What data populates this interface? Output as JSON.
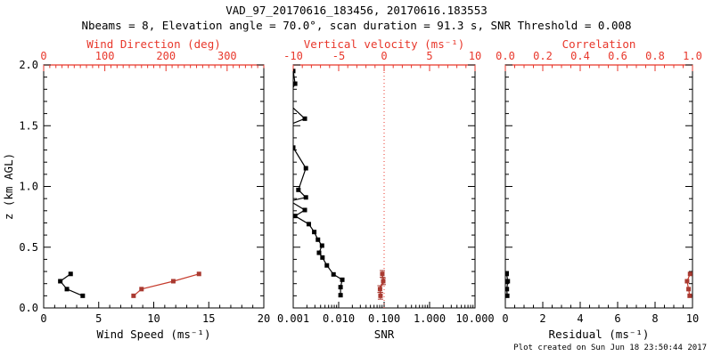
{
  "title": "VAD_97_20170616_183456, 20170616.183553",
  "subtitle": "Nbeams = 8, Elevation angle = 70.0°, scan duration = 91.3 s, SNR Threshold = 0.008",
  "footer": "Plot created on Sun Jun 18 23:50:44 2017",
  "colors": {
    "background": "#ffffff",
    "black": "#000000",
    "axis_red": "#e8372b",
    "data_red": "#a93a31",
    "data_red_line": "#c53a2b"
  },
  "chart_data": {
    "type": "line",
    "ylabel": "z (km AGL)",
    "ylim": [
      0,
      2.0
    ],
    "yticks": [
      0.0,
      0.5,
      1.0,
      1.5,
      2.0
    ],
    "ytick_labels": [
      "0.0",
      "0.5",
      "1.0",
      "1.5",
      "2.0"
    ],
    "y_minor_step": 0.1,
    "legend": "none",
    "grid": false,
    "panels": [
      {
        "name": "wind",
        "bottom_axis": {
          "label": "Wind Speed (ms⁻¹)",
          "scale": "linear",
          "min": 0,
          "max": 20,
          "ticks": [
            0,
            5,
            10,
            15,
            20
          ],
          "tick_labels": [
            "0",
            "5",
            "10",
            "15",
            "20"
          ],
          "minor_step": 1,
          "color": "black"
        },
        "top_axis": {
          "label": "Wind Direction (deg)",
          "scale": "linear",
          "min": 0,
          "max": 360,
          "ticks": [
            0,
            100,
            200,
            300
          ],
          "tick_labels": [
            "0",
            "100",
            "200",
            "300"
          ],
          "minor_step": 10,
          "color": "red"
        },
        "series": [
          {
            "name": "wind-speed",
            "axis": "bottom",
            "color": "black",
            "marker": "square",
            "points": [
              [
                3.55,
                0.1
              ],
              [
                2.11,
                0.155
              ],
              [
                1.51,
                0.22
              ],
              [
                2.45,
                0.28
              ]
            ]
          },
          {
            "name": "wind-direction",
            "axis": "top",
            "color": "red",
            "marker": "square",
            "points": [
              [
                147,
                0.1
              ],
              [
                160,
                0.155
              ],
              [
                212,
                0.22
              ],
              [
                254,
                0.28
              ]
            ]
          }
        ]
      },
      {
        "name": "snr",
        "bottom_axis": {
          "label": "SNR",
          "scale": "log",
          "min": 0.001,
          "max": 10,
          "ticks": [
            0.001,
            0.01,
            0.1,
            1,
            10
          ],
          "tick_labels": [
            "0.001",
            "0.010",
            "0.100",
            "1.000",
            "10.000"
          ],
          "color": "black"
        },
        "top_axis": {
          "label": "Vertical velocity (ms⁻¹)",
          "scale": "linear",
          "min": -10,
          "max": 10,
          "ticks": [
            -10,
            -5,
            0,
            5,
            10
          ],
          "tick_labels": [
            "-10",
            "-5",
            "0",
            "5",
            "10"
          ],
          "minor_step": 1,
          "color": "red",
          "refline": 0
        },
        "series": [
          {
            "name": "snr-profile",
            "axis": "bottom",
            "color": "black",
            "marker": "square",
            "points": [
              [
                0.011,
                0.105
              ],
              [
                0.011,
                0.171
              ],
              [
                0.012,
                0.232
              ],
              [
                0.0077,
                0.276
              ],
              [
                0.0055,
                0.35
              ],
              [
                0.0044,
                0.415
              ],
              [
                0.0037,
                0.454
              ],
              [
                0.0043,
                0.513
              ],
              [
                0.0035,
                0.562
              ],
              [
                0.0029,
                0.625
              ],
              [
                0.0022,
                0.69
              ],
              [
                0.0011,
                0.757
              ],
              [
                0.0018,
                0.806
              ],
              [
                0.00085,
                0.88
              ],
              [
                0.0019,
                0.91
              ],
              [
                0.0013,
                0.972
              ],
              [
                0.0019,
                1.15
              ],
              [
                0.001,
                1.32
              ],
              [
                0.00085,
                1.51
              ],
              [
                0.0018,
                1.558
              ],
              [
                0.0007,
                1.7
              ],
              [
                0.0011,
                1.846
              ],
              [
                0.001,
                1.95
              ]
            ]
          },
          {
            "name": "vertical-velocity",
            "axis": "top",
            "color": "red",
            "marker": "square",
            "error_z": 0.028,
            "points": [
              [
                -0.4,
                0.1
              ],
              [
                -0.45,
                0.155
              ],
              [
                -0.1,
                0.22
              ],
              [
                -0.2,
                0.28
              ]
            ]
          }
        ]
      },
      {
        "name": "residual",
        "bottom_axis": {
          "label": "Residual (ms⁻¹)",
          "scale": "linear",
          "min": 0,
          "max": 10,
          "ticks": [
            0,
            2,
            4,
            6,
            8,
            10
          ],
          "tick_labels": [
            "0",
            "2",
            "4",
            "6",
            "8",
            "10"
          ],
          "minor_step": 0.5,
          "color": "black"
        },
        "top_axis": {
          "label": "Correlation",
          "scale": "linear",
          "min": 0,
          "max": 1,
          "ticks": [
            0,
            0.2,
            0.4,
            0.6,
            0.8,
            1.0
          ],
          "tick_labels": [
            "0.0",
            "0.2",
            "0.4",
            "0.6",
            "0.8",
            "1.0"
          ],
          "minor_step": 0.05,
          "color": "red"
        },
        "series": [
          {
            "name": "residual-profile",
            "axis": "bottom",
            "color": "black",
            "marker": "square",
            "points": [
              [
                0.1,
                0.1
              ],
              [
                0.08,
                0.155
              ],
              [
                0.13,
                0.22
              ],
              [
                0.07,
                0.28
              ]
            ]
          },
          {
            "name": "correlation",
            "axis": "top",
            "color": "red",
            "marker": "square",
            "points": [
              [
                0.985,
                0.1
              ],
              [
                0.979,
                0.155
              ],
              [
                0.971,
                0.22
              ],
              [
                0.987,
                0.28
              ]
            ]
          }
        ]
      }
    ]
  }
}
